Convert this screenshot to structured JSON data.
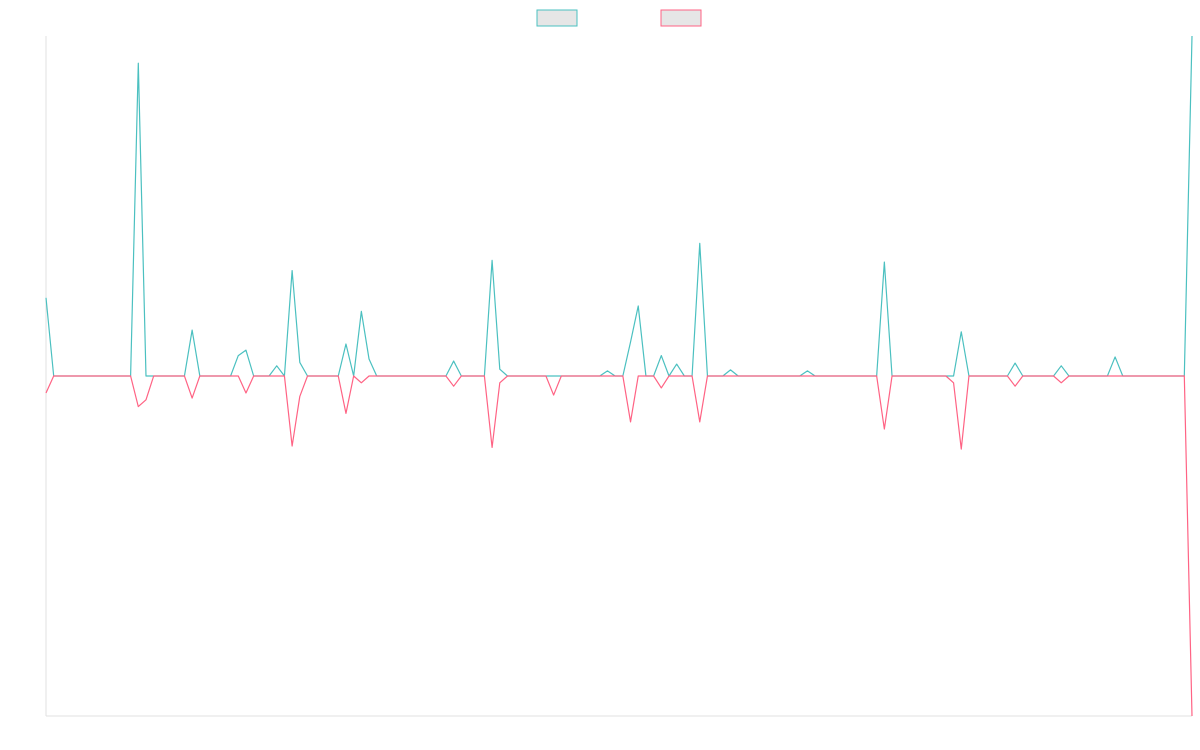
{
  "chart_data": {
    "type": "line",
    "legend": "top",
    "grid": false,
    "ylim": [
      -100,
      100
    ],
    "categories": [
      null,
      null,
      null,
      null,
      null,
      null,
      null,
      null,
      null,
      null,
      null,
      null,
      null,
      null,
      null,
      null,
      null,
      null,
      null,
      null,
      null,
      null,
      null,
      null,
      null,
      null,
      null,
      null,
      null,
      null,
      null,
      null,
      null,
      null,
      null,
      null,
      null,
      null,
      null,
      null,
      null,
      null,
      null,
      null,
      null,
      null,
      null,
      null,
      null,
      null,
      null,
      null,
      null,
      null,
      null,
      null,
      null,
      null,
      null,
      null,
      null,
      null,
      null,
      null,
      null,
      null,
      null,
      null,
      null,
      null,
      null,
      null,
      null,
      null,
      null,
      null,
      null,
      null,
      null,
      null,
      null,
      null,
      null,
      null,
      null,
      null,
      null,
      null,
      null,
      null,
      null,
      null,
      null,
      null,
      null,
      null,
      null,
      null,
      null,
      null,
      null,
      null,
      null,
      null,
      null,
      null,
      null,
      null,
      null,
      null,
      null,
      null,
      null,
      null,
      null,
      null,
      null,
      null,
      null,
      null,
      null,
      null,
      null,
      null,
      null,
      null,
      null,
      null,
      null,
      null,
      null,
      null,
      null,
      null,
      null,
      null,
      null,
      null,
      null,
      null,
      null,
      null,
      null,
      null,
      null,
      null,
      null,
      null,
      null,
      null
    ],
    "series": [
      {
        "color": "#4bc0c0",
        "values": [
          23,
          0,
          0,
          0,
          0,
          0,
          0,
          0,
          0,
          0,
          0,
          0,
          92,
          0,
          0,
          0,
          0,
          0,
          0,
          13.5,
          0,
          0,
          0,
          0,
          0,
          6,
          7.6,
          0,
          0,
          0,
          3,
          0,
          31,
          4,
          0,
          0,
          0,
          0,
          0,
          9.4,
          0,
          19,
          5,
          0,
          0,
          0,
          0,
          0,
          0,
          0,
          0,
          0,
          0,
          4.4,
          0,
          0,
          0,
          0,
          34,
          2,
          0,
          0,
          0,
          0,
          0,
          0,
          0,
          0,
          0,
          0,
          0,
          0,
          0,
          1.5,
          0,
          0,
          10,
          20.6,
          0,
          0,
          6,
          0,
          3.5,
          0,
          0,
          39,
          0,
          0,
          0,
          1.8,
          0,
          0,
          0,
          0,
          0,
          0,
          0,
          0,
          0,
          1.5,
          0,
          0,
          0,
          0,
          0,
          0,
          0,
          0,
          0,
          33.5,
          0,
          0,
          0,
          0,
          0,
          0,
          0,
          0,
          0,
          13,
          0,
          0,
          0,
          0,
          0,
          0,
          3.8,
          0,
          0,
          0,
          0,
          0,
          3,
          0,
          0,
          0,
          0,
          0,
          0,
          5.6,
          0,
          0,
          0,
          0,
          0,
          0,
          0,
          0,
          0,
          100
        ]
      },
      {
        "color": "#ff6384",
        "values": [
          -5,
          0,
          0,
          0,
          0,
          0,
          0,
          0,
          0,
          0,
          0,
          0,
          -9,
          -7,
          0,
          0,
          0,
          0,
          0,
          -6.5,
          0,
          0,
          0,
          0,
          0,
          0,
          -5,
          0,
          0,
          0,
          0,
          0,
          -20.6,
          -6,
          0,
          0,
          0,
          0,
          0,
          -11,
          0,
          -2,
          0,
          0,
          0,
          0,
          0,
          0,
          0,
          0,
          0,
          0,
          0,
          -3,
          0,
          0,
          0,
          0,
          -21,
          -2,
          0,
          0,
          0,
          0,
          0,
          0,
          -5.6,
          0,
          0,
          0,
          0,
          0,
          0,
          0,
          0,
          0,
          -13.5,
          0,
          0,
          0,
          -3.5,
          0,
          0,
          0,
          0,
          -13.5,
          0,
          0,
          0,
          0,
          0,
          0,
          0,
          0,
          0,
          0,
          0,
          0,
          0,
          0,
          0,
          0,
          0,
          0,
          0,
          0,
          0,
          0,
          0,
          -15.6,
          0,
          0,
          0,
          0,
          0,
          0,
          0,
          0,
          -2,
          -21.5,
          0,
          0,
          0,
          0,
          0,
          0,
          -3,
          0,
          0,
          0,
          0,
          0,
          -2,
          0,
          0,
          0,
          0,
          0,
          0,
          0,
          0,
          0,
          0,
          0,
          0,
          0,
          0,
          0,
          0,
          -100
        ]
      }
    ]
  }
}
